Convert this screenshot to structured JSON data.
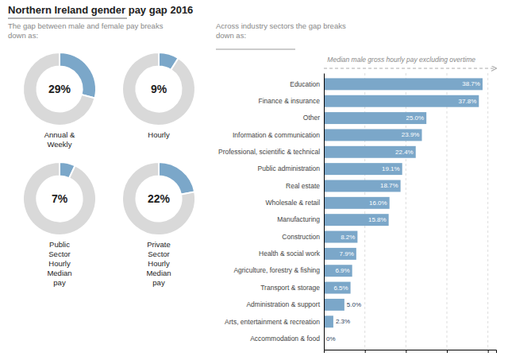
{
  "title": "Northern Ireland gender pay gap 2016",
  "subtitle": "The gap between male and female pay breaks\ndown as:",
  "chart_data": [
    {
      "type": "pie",
      "title": "Annual &\nWeekly",
      "values": [
        29,
        71
      ],
      "value_labels": [
        "29%",
        null
      ],
      "colors": [
        "#7ba7c9",
        "#d9d9d9"
      ],
      "data_labels": true
    },
    {
      "type": "pie",
      "title": "Hourly",
      "values": [
        9,
        91
      ],
      "value_labels": [
        "9%",
        null
      ],
      "colors": [
        "#7ba7c9",
        "#d9d9d9"
      ],
      "data_labels": true
    },
    {
      "type": "pie",
      "title": "Public\nSector\nHourly\nMedian\npay",
      "values": [
        7,
        93
      ],
      "value_labels": [
        "7%",
        null
      ],
      "colors": [
        "#7ba7c9",
        "#d9d9d9"
      ],
      "data_labels": true
    },
    {
      "type": "pie",
      "title": "Private\nSector\nHourly\nMedian\npay",
      "values": [
        22,
        78
      ],
      "value_labels": [
        "22%",
        null
      ],
      "colors": [
        "#7ba7c9",
        "#d9d9d9"
      ],
      "data_labels": true
    },
    {
      "type": "bar",
      "orientation": "horizontal",
      "subtitle": "Across industry sectors the gap breaks\ndown as:",
      "annotation": "Median male gross hourly pay excluding overtime",
      "categories": [
        "Education",
        "Finance & insurance",
        "Other",
        "Information & communication",
        "Professional, scientific & technical",
        "Public administration",
        "Real estate",
        "Wholesale & retail",
        "Manufacturing",
        "Construction",
        "Health & social work",
        "Agriculture, forestry & fishing",
        "Transport & storage",
        "Administration & support",
        "Arts, entertainment & recreation",
        "Accommodation & food"
      ],
      "values": [
        38.7,
        37.8,
        25.0,
        23.9,
        22.4,
        19.1,
        18.7,
        16.0,
        15.8,
        8.2,
        7.9,
        6.9,
        6.5,
        5.0,
        2.3,
        0.0
      ],
      "value_labels": [
        "38.7%",
        "37.8%",
        "25.0%",
        "23.9%",
        "22.4%",
        "19.1%",
        "18.7%",
        "16.0%",
        "15.8%",
        "8.2%",
        "7.9%",
        "6.9%",
        "6.5%",
        "5.0%",
        "2.3%",
        "0%"
      ],
      "data_labels": true,
      "color": "#7ba7c9",
      "xlim": [
        0,
        42
      ],
      "xticks": [
        10,
        20,
        30,
        40
      ],
      "grid": true,
      "tick_labels": "y"
    }
  ]
}
